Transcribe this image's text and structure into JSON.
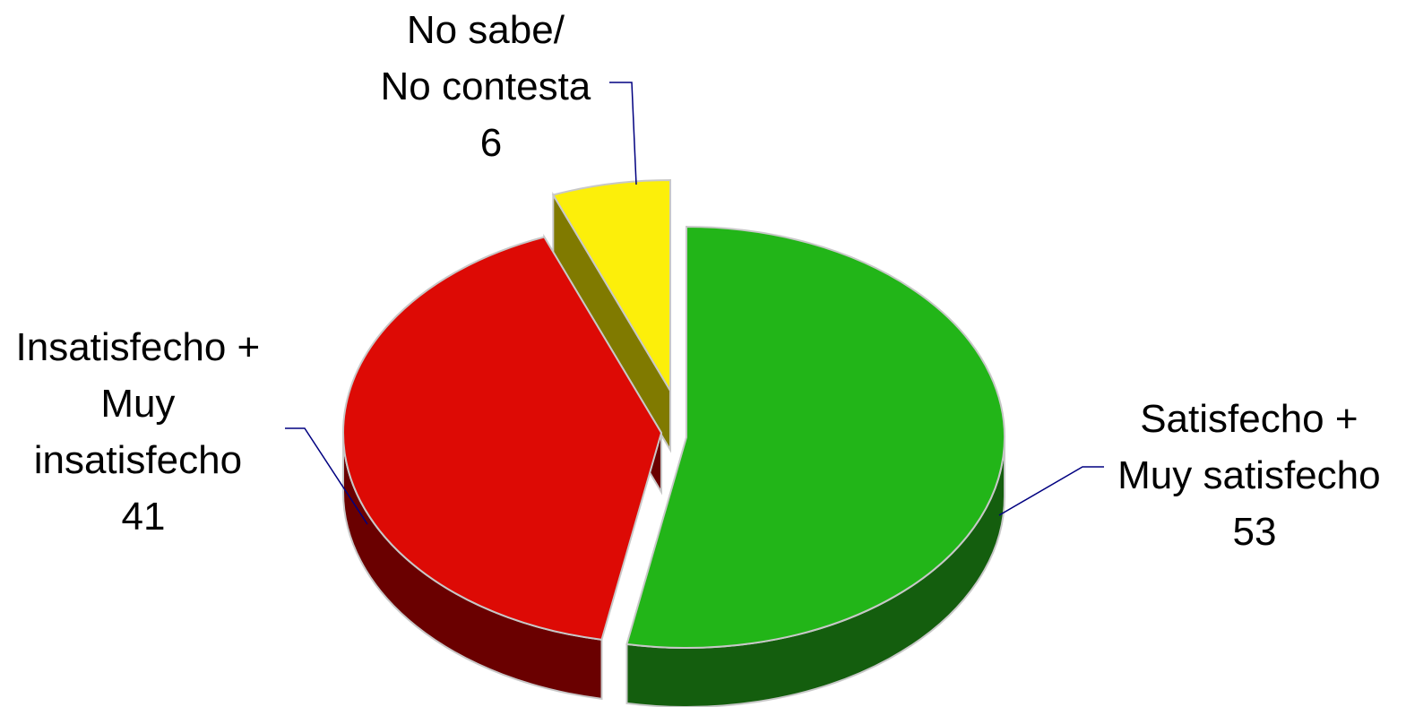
{
  "chart_data": {
    "type": "pie",
    "style": "3d-exploded",
    "title": "",
    "slices": [
      {
        "label_lines": [
          "Satisfecho +",
          "Muy satisfecho"
        ],
        "value": 53,
        "value_label": "53",
        "color": "#22B518",
        "side_color": "#145E0E"
      },
      {
        "label_lines": [
          "Insatisfecho +",
          "Muy",
          "insatisfecho"
        ],
        "value": 41,
        "value_label": "41",
        "color": "#DD0A05",
        "side_color": "#6A0000"
      },
      {
        "label_lines": [
          "No sabe/",
          "No contesta"
        ],
        "value": 6,
        "value_label": "6",
        "color": "#FCEF0A",
        "side_color": "#807A00"
      }
    ],
    "leader_line_color": "#000080",
    "edge_color": "#C8C8C8"
  }
}
